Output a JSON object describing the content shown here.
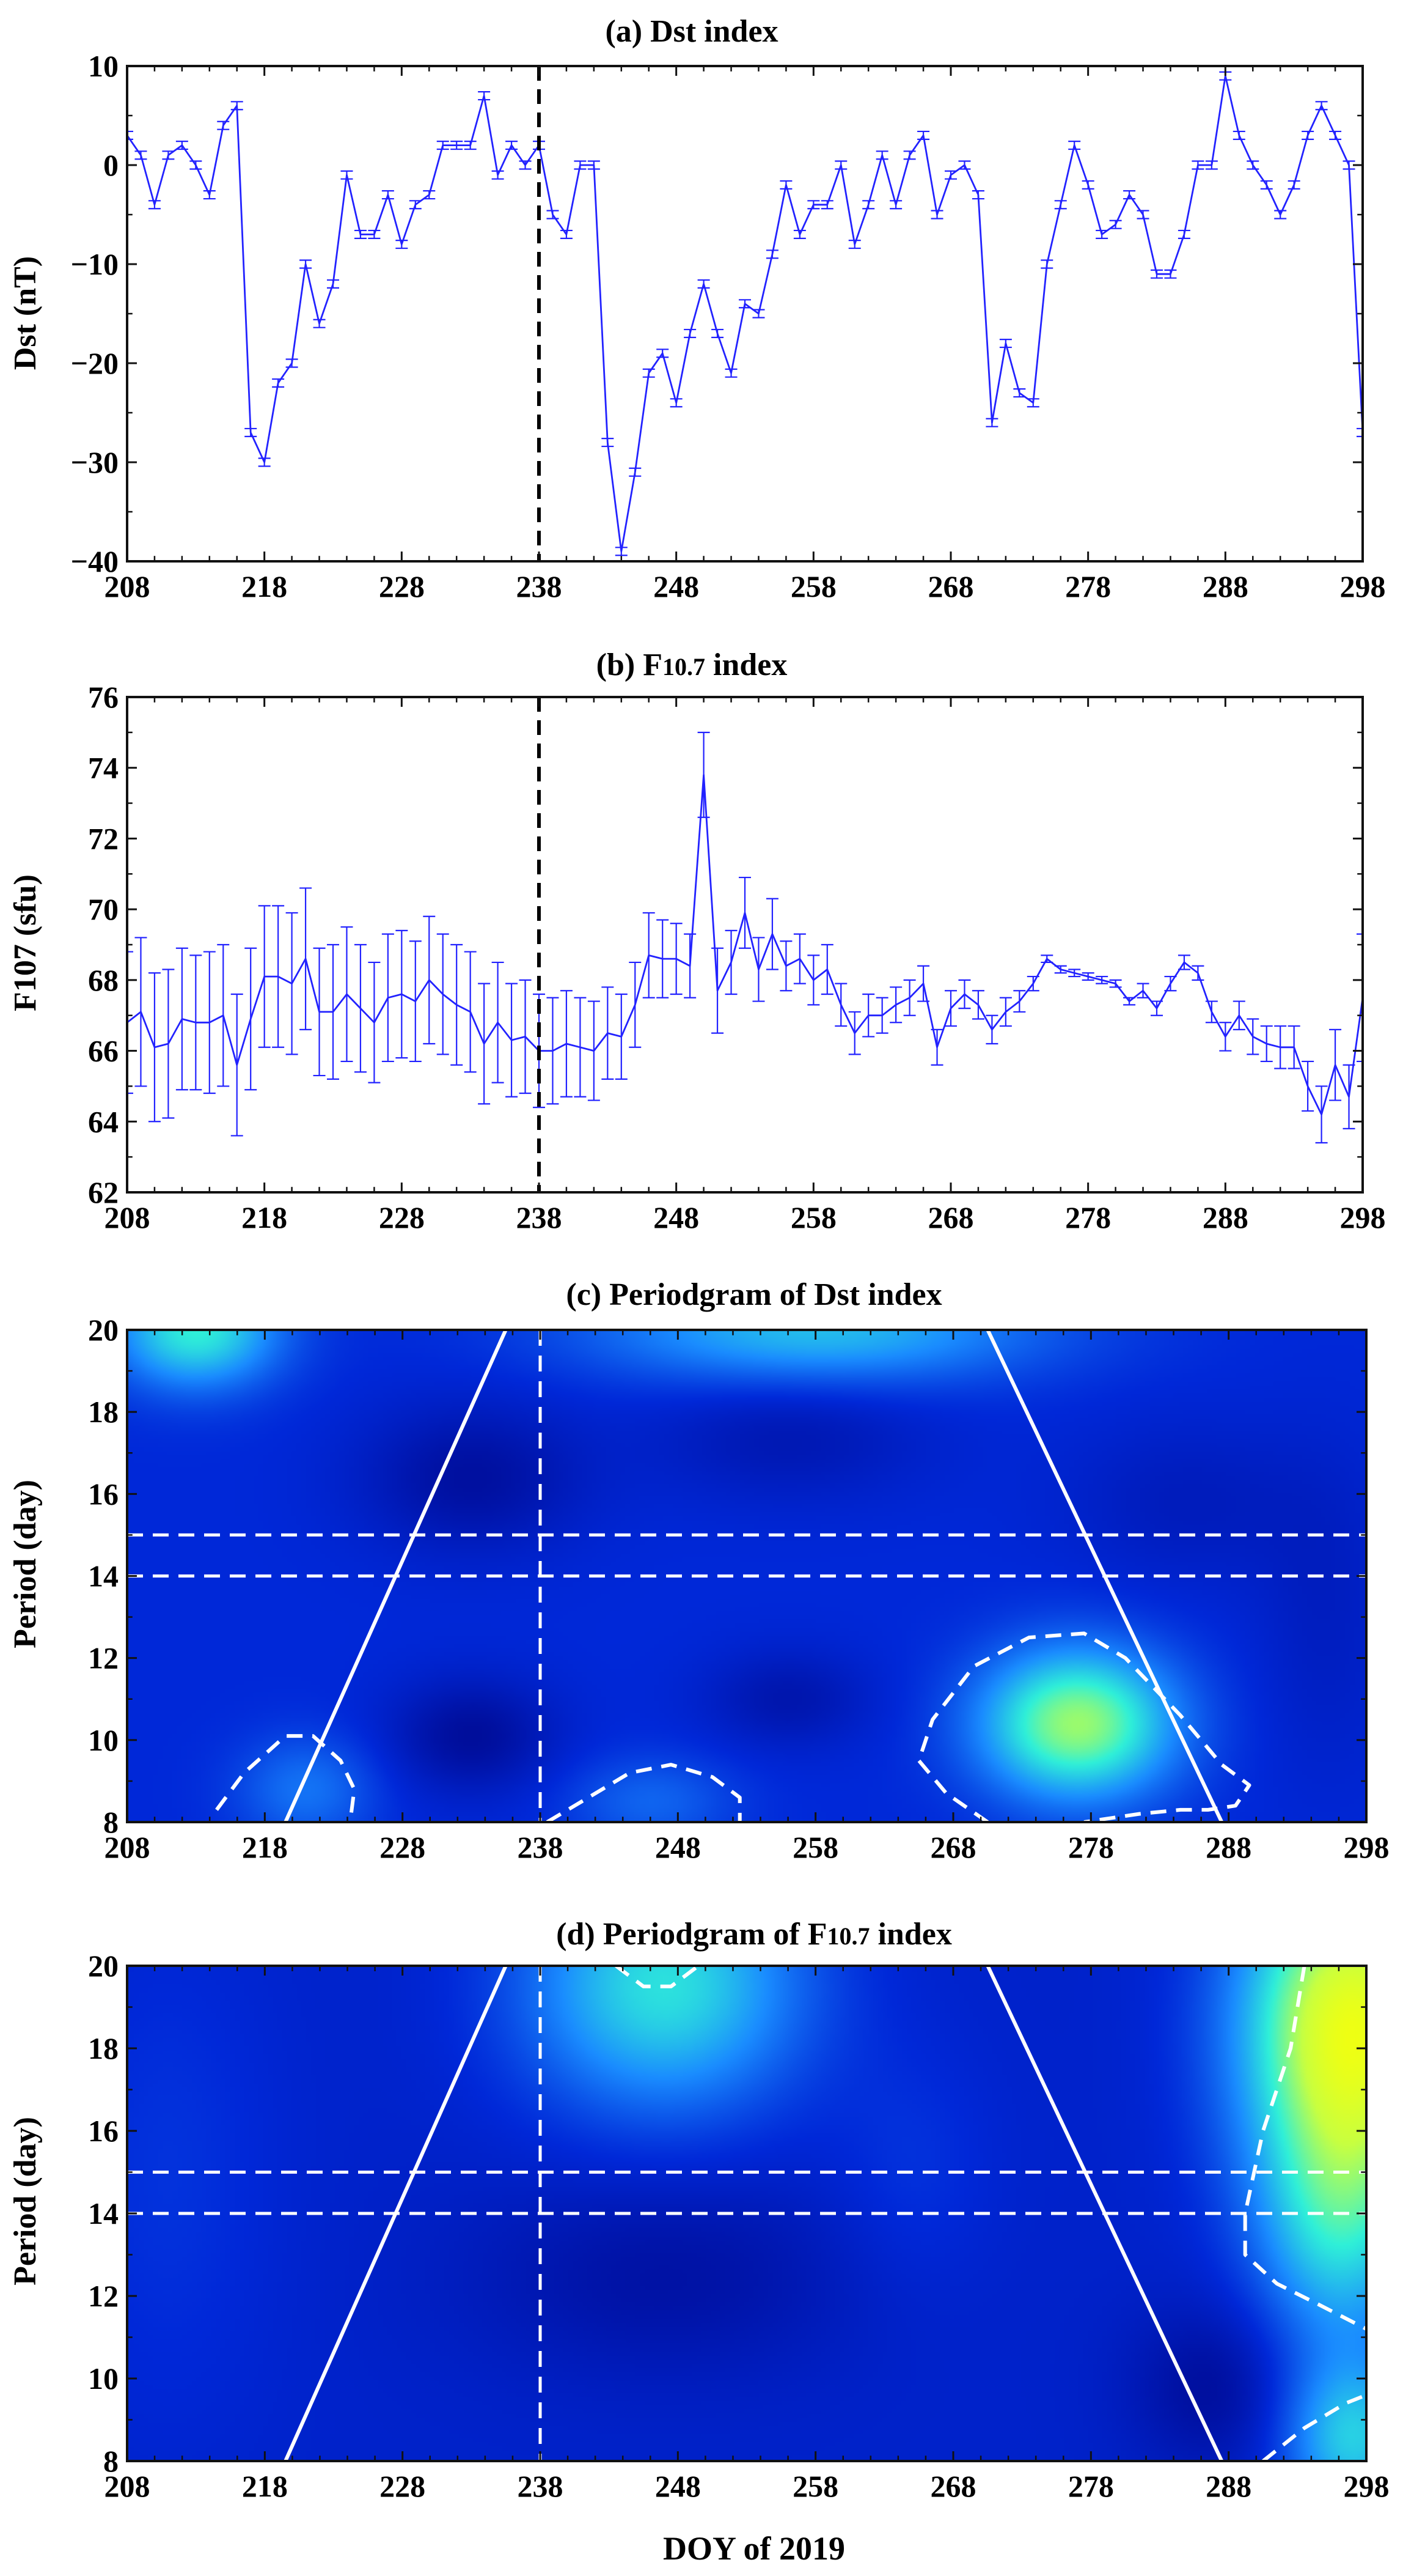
{
  "chart_data": [
    {
      "type": "line",
      "panel": "a",
      "title": "(a) Dst index",
      "xlabel": "",
      "ylabel": "Dst (nT)",
      "xlim": [
        208,
        298
      ],
      "ylim": [
        -40,
        10
      ],
      "xticks": [
        208,
        218,
        228,
        238,
        248,
        258,
        268,
        278,
        288,
        298
      ],
      "yticks": [
        -40,
        -30,
        -20,
        -10,
        0,
        10
      ],
      "ytick_labels": [
        "−40",
        "−30",
        "−20",
        "−10",
        "0",
        "10"
      ],
      "marker_day": 238,
      "error_bar": 0.4,
      "series": [
        {
          "name": "Dst",
          "color": "#2222ff",
          "x": [
            208,
            209,
            210,
            211,
            212,
            213,
            214,
            215,
            216,
            217,
            218,
            219,
            220,
            221,
            222,
            223,
            224,
            225,
            226,
            227,
            228,
            229,
            230,
            231,
            232,
            233,
            234,
            235,
            236,
            237,
            238,
            239,
            240,
            241,
            242,
            243,
            244,
            245,
            246,
            247,
            248,
            249,
            250,
            251,
            252,
            253,
            254,
            255,
            256,
            257,
            258,
            259,
            260,
            261,
            262,
            263,
            264,
            265,
            266,
            267,
            268,
            269,
            270,
            271,
            272,
            273,
            274,
            275,
            276,
            277,
            278,
            279,
            280,
            281,
            282,
            283,
            284,
            285,
            286,
            287,
            288,
            289,
            290,
            291,
            292,
            293,
            294,
            295,
            296,
            297,
            298
          ],
          "values": [
            3,
            1,
            -4,
            1,
            2,
            0,
            -3,
            4,
            6,
            -27,
            -30,
            -22,
            -20,
            -10,
            -16,
            -12,
            -1,
            -7,
            -7,
            -3,
            -8,
            -4,
            -3,
            2,
            2,
            2,
            7,
            -1,
            2,
            0,
            2,
            -5,
            -7,
            0,
            0,
            -28,
            -39,
            -31,
            -21,
            -19,
            -24,
            -17,
            -12,
            -17,
            -21,
            -14,
            -15,
            -9,
            -2,
            -7,
            -4,
            -4,
            0,
            -8,
            -4,
            1,
            -4,
            1,
            3,
            -5,
            -1,
            0,
            -3,
            -26,
            -18,
            -23,
            -24,
            -10,
            -4,
            2,
            -2,
            -7,
            -6,
            -3,
            -5,
            -11,
            -11,
            -7,
            0,
            0,
            9,
            3,
            0,
            -2,
            -5,
            -2,
            3,
            6,
            3,
            0,
            -27
          ]
        }
      ]
    },
    {
      "type": "line",
      "panel": "b",
      "title_main": "(b) F",
      "title_sub": "10.7",
      "title_tail": " index",
      "xlabel": "",
      "ylabel": "F107 (sfu)",
      "xlim": [
        208,
        298
      ],
      "ylim": [
        62,
        76
      ],
      "xticks": [
        208,
        218,
        228,
        238,
        248,
        258,
        268,
        278,
        288,
        298
      ],
      "yticks": [
        62,
        64,
        66,
        68,
        70,
        72,
        74,
        76
      ],
      "marker_day": 238,
      "series": [
        {
          "name": "F107",
          "color": "#2222ff",
          "x": [
            208,
            209,
            210,
            211,
            212,
            213,
            214,
            215,
            216,
            217,
            218,
            219,
            220,
            221,
            222,
            223,
            224,
            225,
            226,
            227,
            228,
            229,
            230,
            231,
            232,
            233,
            234,
            235,
            236,
            237,
            238,
            239,
            240,
            241,
            242,
            243,
            244,
            245,
            246,
            247,
            248,
            249,
            250,
            251,
            252,
            253,
            254,
            255,
            256,
            257,
            258,
            259,
            260,
            261,
            262,
            263,
            264,
            265,
            266,
            267,
            268,
            269,
            270,
            271,
            272,
            273,
            274,
            275,
            276,
            277,
            278,
            279,
            280,
            281,
            282,
            283,
            284,
            285,
            286,
            287,
            288,
            289,
            290,
            291,
            292,
            293,
            294,
            295,
            296,
            297,
            298
          ],
          "values": [
            66.8,
            67.1,
            66.1,
            66.2,
            66.9,
            66.8,
            66.8,
            67.0,
            65.6,
            66.9,
            68.1,
            68.1,
            67.9,
            68.6,
            67.1,
            67.1,
            67.6,
            67.2,
            66.8,
            67.5,
            67.6,
            67.4,
            68.0,
            67.6,
            67.3,
            67.1,
            66.2,
            66.8,
            66.3,
            66.4,
            66.0,
            66.0,
            66.2,
            66.1,
            66.0,
            66.5,
            66.4,
            67.3,
            68.7,
            68.6,
            68.6,
            68.4,
            73.8,
            67.7,
            68.5,
            69.9,
            68.3,
            69.3,
            68.4,
            68.6,
            68.0,
            68.3,
            67.3,
            66.5,
            67.0,
            67.0,
            67.3,
            67.5,
            67.9,
            66.1,
            67.2,
            67.6,
            67.3,
            66.6,
            67.1,
            67.4,
            67.9,
            68.6,
            68.3,
            68.2,
            68.1,
            68.0,
            67.9,
            67.4,
            67.7,
            67.2,
            67.9,
            68.5,
            68.2,
            67.1,
            66.4,
            67.0,
            66.4,
            66.2,
            66.1,
            66.1,
            65.0,
            64.2,
            65.6,
            64.7,
            67.5
          ],
          "errors": [
            2.0,
            2.1,
            2.1,
            2.1,
            2.0,
            1.9,
            2.0,
            2.0,
            2.0,
            2.0,
            2.0,
            2.0,
            2.0,
            2.0,
            1.8,
            1.9,
            1.9,
            1.8,
            1.7,
            1.8,
            1.8,
            1.7,
            1.8,
            1.7,
            1.7,
            1.7,
            1.7,
            1.7,
            1.6,
            1.6,
            1.6,
            1.5,
            1.5,
            1.4,
            1.4,
            1.3,
            1.2,
            1.2,
            1.2,
            1.1,
            1.0,
            0.9,
            1.2,
            1.2,
            0.9,
            1.0,
            0.9,
            1.0,
            0.7,
            0.7,
            0.7,
            0.7,
            0.6,
            0.6,
            0.6,
            0.5,
            0.5,
            0.5,
            0.5,
            0.5,
            0.5,
            0.4,
            0.4,
            0.4,
            0.4,
            0.3,
            0.2,
            0.1,
            0.1,
            0.1,
            0.1,
            0.1,
            0.1,
            0.1,
            0.2,
            0.2,
            0.2,
            0.2,
            0.2,
            0.3,
            0.4,
            0.4,
            0.5,
            0.5,
            0.6,
            0.6,
            0.7,
            0.8,
            1.0,
            0.9,
            1.8
          ]
        }
      ]
    },
    {
      "type": "heatmap",
      "panel": "c",
      "title": "(c) Periodgram of Dst index",
      "xlabel": "",
      "ylabel": "Period (day)",
      "xlim": [
        208,
        298
      ],
      "ylim": [
        8,
        20
      ],
      "xticks": [
        208,
        218,
        228,
        238,
        248,
        258,
        268,
        278,
        288,
        298
      ],
      "yticks": [
        8,
        10,
        12,
        14,
        16,
        18,
        20
      ],
      "marker_day": 238,
      "period_band": [
        14,
        15
      ],
      "cone_of_influence": [
        [
          [
            219.5,
            8
          ],
          [
            235.5,
            20
          ]
        ],
        [
          [
            270.5,
            20
          ],
          [
            287.5,
            8
          ]
        ]
      ],
      "colormap": [
        "#00007a",
        "#0028d8",
        "#1a8cff",
        "#2ff0d8",
        "#c8ff40",
        "#ffff00"
      ],
      "background": 0.2,
      "blobs": [
        [
          258,
          20.0,
          16,
          1.3,
          0.3
        ],
        [
          213,
          20.0,
          6,
          1.4,
          0.4
        ],
        [
          233,
          16.4,
          8,
          1.8,
          -0.12
        ],
        [
          256,
          17.4,
          10,
          1.6,
          -0.08
        ],
        [
          285,
          15.8,
          9,
          2.0,
          -0.06
        ],
        [
          233,
          10.1,
          6,
          1.4,
          -0.13
        ],
        [
          256,
          11.0,
          6,
          1.2,
          -0.09
        ],
        [
          277,
          10.4,
          7,
          1.8,
          0.54
        ],
        [
          221,
          8.8,
          5,
          1.3,
          0.15
        ],
        [
          246,
          8.5,
          6,
          1.1,
          0.12
        ],
        [
          295,
          13.0,
          5,
          4.0,
          -0.05
        ]
      ],
      "significance_contours": [
        [
          [
            214.5,
            8.3
          ],
          [
            216.5,
            9.2
          ],
          [
            219.5,
            10.1
          ],
          [
            221.5,
            10.1
          ],
          [
            223.5,
            9.5
          ],
          [
            224.5,
            8.8
          ],
          [
            224.2,
            8.0
          ]
        ],
        [
          [
            238.5,
            8.0
          ],
          [
            241.5,
            8.6
          ],
          [
            244.5,
            9.2
          ],
          [
            247.5,
            9.4
          ],
          [
            250.5,
            9.1
          ],
          [
            252.5,
            8.6
          ],
          [
            252.5,
            8.0
          ]
        ],
        [
          [
            270.5,
            8.0
          ],
          [
            267.5,
            8.7
          ],
          [
            265.5,
            9.5
          ],
          [
            266.5,
            10.5
          ],
          [
            269.5,
            11.8
          ],
          [
            273.5,
            12.5
          ],
          [
            277.5,
            12.6
          ],
          [
            280.5,
            12.0
          ],
          [
            284.5,
            10.6
          ],
          [
            287.5,
            9.4
          ],
          [
            289.5,
            8.9
          ],
          [
            288.5,
            8.4
          ],
          [
            286.5,
            8.3
          ],
          [
            284.5,
            8.3
          ],
          [
            281.5,
            8.2
          ],
          [
            279.5,
            8.1
          ],
          [
            277.5,
            8.0
          ]
        ]
      ]
    },
    {
      "type": "heatmap",
      "panel": "d",
      "title_main": "(d) Periodgram of F",
      "title_sub": "10.7",
      "title_tail": " index",
      "xlabel": "DOY of 2019",
      "ylabel": "Period (day)",
      "xlim": [
        208,
        298
      ],
      "ylim": [
        8,
        20
      ],
      "xticks": [
        208,
        218,
        228,
        238,
        248,
        258,
        268,
        278,
        288,
        298
      ],
      "yticks": [
        8,
        10,
        12,
        14,
        16,
        18,
        20
      ],
      "marker_day": 238,
      "period_band": [
        14,
        15
      ],
      "cone_of_influence": [
        [
          [
            219.5,
            8
          ],
          [
            235.5,
            20
          ]
        ],
        [
          [
            270.5,
            20
          ],
          [
            287.5,
            8
          ]
        ]
      ],
      "colormap": [
        "#00007a",
        "#0028d8",
        "#1a8cff",
        "#2ff0d8",
        "#c8ff40",
        "#ffff00"
      ],
      "background": 0.17,
      "blobs": [
        [
          247,
          19.5,
          10,
          3.0,
          0.4
        ],
        [
          247,
          12.5,
          14,
          2.5,
          -0.08
        ],
        [
          265,
          15.0,
          6,
          3.0,
          0.05
        ],
        [
          297,
          18.5,
          8,
          4.0,
          0.75
        ],
        [
          296,
          13.5,
          6,
          3.0,
          0.3
        ],
        [
          211,
          15.0,
          8,
          6.0,
          0.05
        ],
        [
          287,
          9.8,
          6,
          2.0,
          -0.1
        ],
        [
          297,
          8.5,
          5,
          2.0,
          0.35
        ]
      ],
      "significance_contours": [
        [
          [
            243.5,
            20.0
          ],
          [
            245.5,
            19.5
          ],
          [
            247.5,
            19.5
          ],
          [
            249.5,
            20.0
          ]
        ],
        [
          [
            293.5,
            20.0
          ],
          [
            292.5,
            18.0
          ],
          [
            290.5,
            16.0
          ],
          [
            289.2,
            14.0
          ],
          [
            289.2,
            13.0
          ],
          [
            291.5,
            12.3
          ],
          [
            294.5,
            11.8
          ],
          [
            298,
            11.2
          ]
        ],
        [
          [
            290.5,
            8.0
          ],
          [
            293.5,
            8.8
          ],
          [
            296.5,
            9.4
          ],
          [
            298,
            9.6
          ]
        ]
      ]
    }
  ]
}
